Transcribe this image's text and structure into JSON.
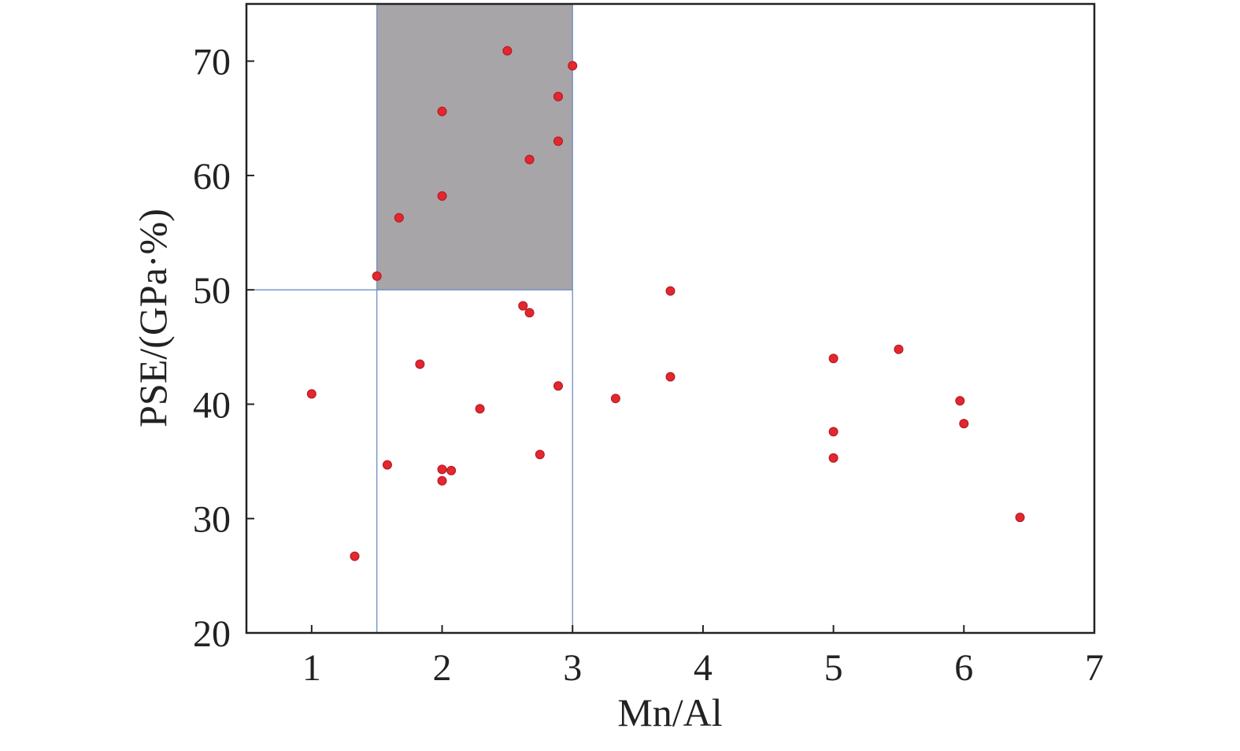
{
  "chart_data": {
    "type": "scatter",
    "xlabel": "Mn/Al",
    "ylabel": "PSE/(GPa·%)",
    "xlim": [
      0.5,
      7
    ],
    "ylim": [
      20,
      75
    ],
    "x_ticks": [
      "1",
      "2",
      "3",
      "4",
      "5",
      "6",
      "7"
    ],
    "y_ticks": [
      "20",
      "30",
      "40",
      "50",
      "60",
      "70"
    ],
    "grid": false,
    "highlight_region": {
      "x": [
        1.5,
        3.0
      ],
      "y": [
        50,
        75
      ]
    },
    "reference_lines": {
      "x": [
        1.5,
        3.0
      ],
      "y": [
        50
      ]
    },
    "series": [
      {
        "points": [
          [
            1.0,
            40.9
          ],
          [
            1.33,
            26.7
          ],
          [
            1.5,
            51.2
          ],
          [
            1.58,
            34.7
          ],
          [
            1.67,
            56.3
          ],
          [
            1.83,
            43.5
          ],
          [
            2.0,
            65.6
          ],
          [
            2.0,
            58.2
          ],
          [
            2.0,
            34.3
          ],
          [
            2.0,
            33.3
          ],
          [
            2.07,
            34.2
          ],
          [
            2.29,
            39.6
          ],
          [
            2.5,
            70.9
          ],
          [
            2.62,
            48.6
          ],
          [
            2.67,
            61.4
          ],
          [
            2.67,
            48.0
          ],
          [
            2.75,
            35.6
          ],
          [
            2.89,
            66.9
          ],
          [
            2.89,
            63.0
          ],
          [
            2.89,
            41.6
          ],
          [
            3.0,
            69.6
          ],
          [
            3.33,
            40.5
          ],
          [
            3.75,
            49.9
          ],
          [
            3.75,
            42.4
          ],
          [
            5.0,
            44.0
          ],
          [
            5.0,
            37.6
          ],
          [
            5.0,
            35.3
          ],
          [
            5.5,
            44.8
          ],
          [
            5.97,
            40.3
          ],
          [
            6.0,
            38.3
          ],
          [
            6.43,
            30.1
          ]
        ]
      }
    ]
  },
  "colors": {
    "point": "#e3262f",
    "highlight": "#a7a5a8",
    "reference_line": "#6f8fc4",
    "axis": "#222222"
  }
}
